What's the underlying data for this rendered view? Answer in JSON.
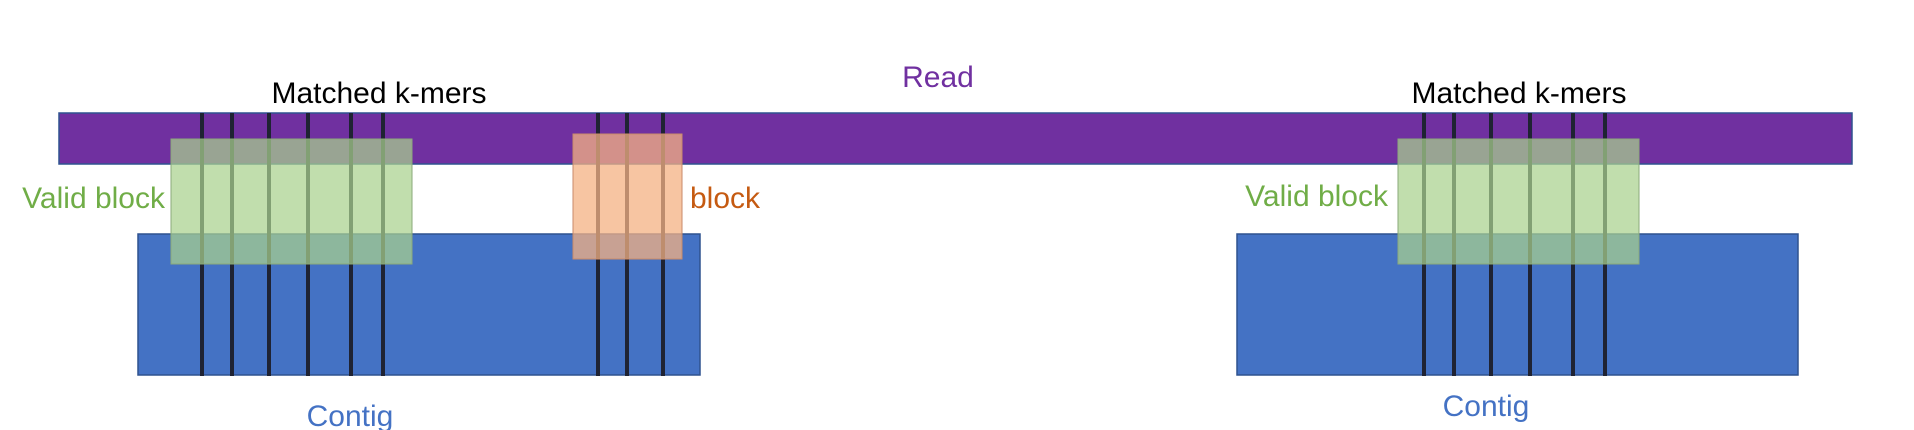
{
  "labels": {
    "read": "Read",
    "matched_left": "Matched k-mers",
    "matched_right": "Matched k-mers",
    "valid_left": "Valid block",
    "valid_right": "Valid block",
    "invalid": "block",
    "contig_left": "Contig",
    "contig_right": "Contig"
  },
  "colors": {
    "read": "#7030a0",
    "contig": "#4472c4",
    "valid_block": "#a9d18e",
    "invalid_block": "#f4b183",
    "kmer_line": "#1f2333",
    "read_text": "#7030a0",
    "contig_text": "#4472c4",
    "valid_text": "#70ad47",
    "invalid_text": "#c55a11",
    "matched_text": "#000000"
  }
}
